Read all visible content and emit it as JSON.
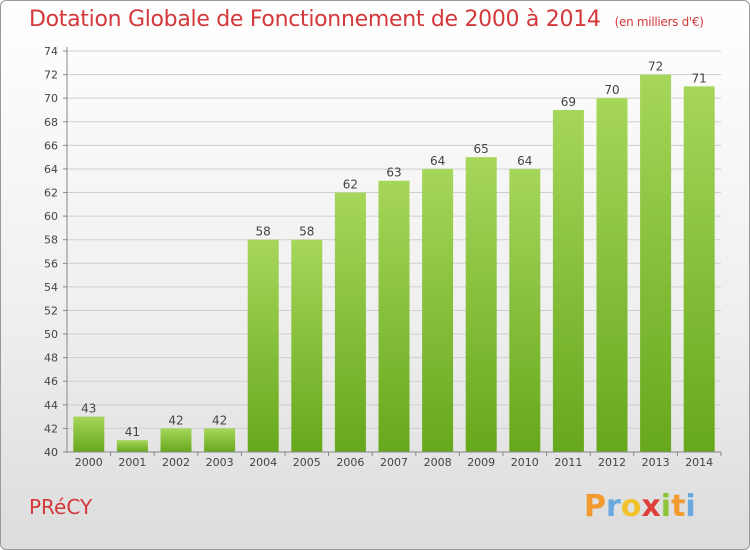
{
  "header": {
    "title": "Dotation Globale de Fonctionnement de 2000 à 2014",
    "unit": "(en milliers d'€)"
  },
  "footer": {
    "commune": "PRéCY",
    "logo": [
      "P",
      "r",
      "o",
      "x",
      "i",
      "t",
      "i"
    ],
    "logo_colors": [
      "#f29a2e",
      "#6aa8e0",
      "#f2c12e",
      "#e0403a",
      "#8cc43a",
      "#f29a2e",
      "#6aa8e0"
    ]
  },
  "colors": {
    "title": "#d4383a",
    "bar_light": "#a6d65a",
    "bar_dark": "#66a81c",
    "grid": "#cfcfcf"
  },
  "chart_data": {
    "type": "bar",
    "title": "Dotation Globale de Fonctionnement de 2000 à 2014",
    "subtitle": "(en milliers d'€)",
    "categories": [
      "2000",
      "2001",
      "2002",
      "2003",
      "2004",
      "2005",
      "2006",
      "2007",
      "2008",
      "2009",
      "2010",
      "2011",
      "2012",
      "2013",
      "2014"
    ],
    "values": [
      43,
      41,
      42,
      42,
      58,
      58,
      62,
      63,
      64,
      65,
      64,
      69,
      70,
      72,
      71
    ],
    "ylim": [
      40,
      74
    ],
    "yticks": [
      40,
      42,
      44,
      46,
      48,
      50,
      52,
      54,
      56,
      58,
      60,
      62,
      64,
      66,
      68,
      70,
      72,
      74
    ],
    "grid": true,
    "data_labels": true
  }
}
